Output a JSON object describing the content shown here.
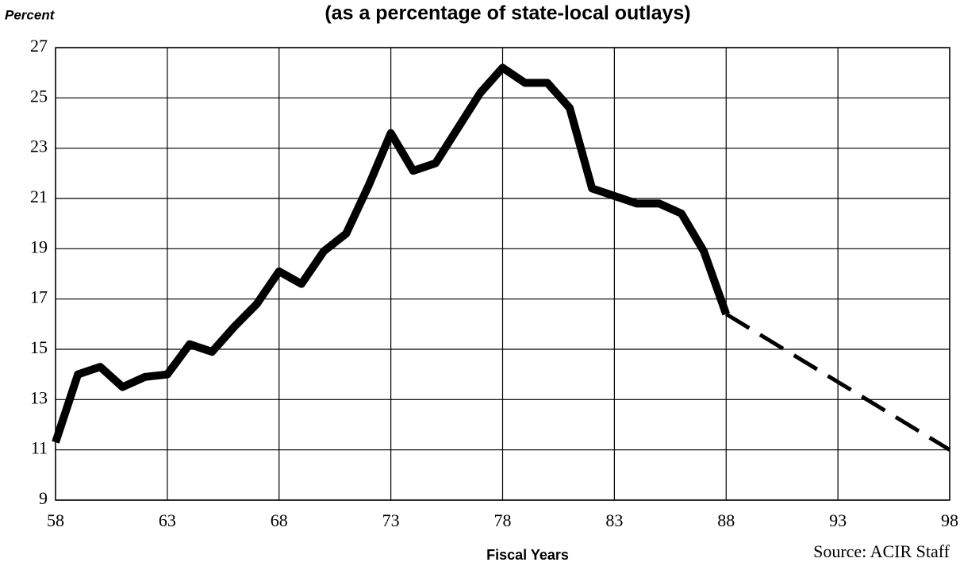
{
  "chart_data": {
    "type": "line",
    "title": "(as a percentage of state-local outlays)",
    "ylabel": "Percent",
    "xlabel": "Fiscal Years",
    "source": "Source: ACIR Staff",
    "xlim": [
      58,
      98
    ],
    "xticks": [
      58,
      63,
      68,
      73,
      78,
      83,
      88,
      93,
      98
    ],
    "ylim": [
      9,
      27
    ],
    "yticks": [
      9,
      11,
      13,
      15,
      17,
      19,
      21,
      23,
      25,
      27
    ],
    "grid": true,
    "series": [
      {
        "color": "#000000",
        "dashed": false,
        "x": [
          58,
          59,
          60,
          61,
          62,
          63,
          64,
          65,
          66,
          67,
          68,
          69,
          70,
          71,
          72,
          73,
          74,
          75,
          76,
          77,
          78,
          79,
          80,
          81,
          82,
          83,
          84,
          85,
          86,
          87,
          88
        ],
        "values": [
          11.3,
          14.0,
          14.3,
          13.5,
          13.9,
          14.0,
          15.2,
          14.9,
          15.9,
          16.8,
          18.1,
          17.6,
          18.9,
          19.6,
          21.5,
          23.6,
          22.1,
          22.4,
          23.8,
          25.2,
          26.2,
          25.6,
          25.6,
          24.6,
          21.4,
          21.1,
          20.8,
          20.8,
          20.4,
          18.9,
          16.4
        ]
      },
      {
        "color": "#000000",
        "dashed": true,
        "x": [
          88,
          98
        ],
        "values": [
          16.4,
          11.0
        ]
      }
    ]
  }
}
